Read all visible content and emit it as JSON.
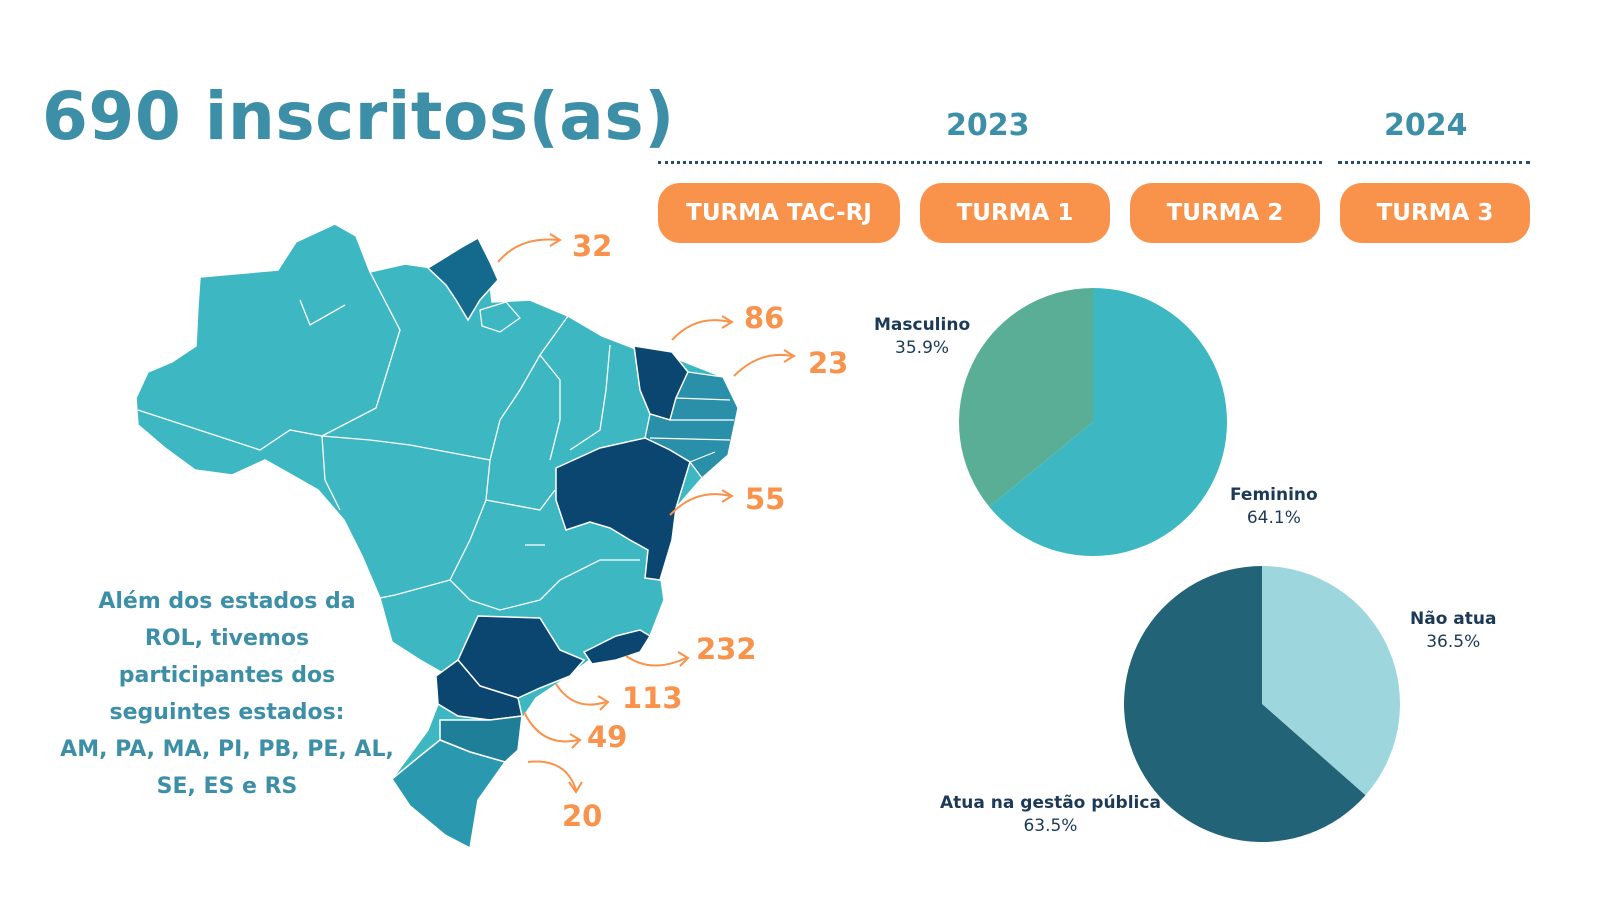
{
  "title": "690 inscritos(as)",
  "years": [
    "2023",
    "2024"
  ],
  "turmas": [
    "TURMA TAC-RJ",
    "TURMA 1",
    "TURMA 2",
    "TURMA 3"
  ],
  "note_lines": [
    "Além dos estados da",
    "ROL, tivemos",
    "participantes dos",
    "seguintes estados:",
    "AM, PA, MA, PI, PB, PE, AL,",
    "SE, ES e RS"
  ],
  "map_counts": [
    "32",
    "86",
    "23",
    "55",
    "232",
    "113",
    "49",
    "20"
  ],
  "colors": {
    "accent_orange": "#f9924b",
    "title_teal": "#3d8fa8",
    "map_light": "#3db8c3",
    "map_dark": "#0a4670",
    "map_mid": "#1f7e98",
    "pie_female": "#3db8c3",
    "pie_male": "#5aae95",
    "pie_atua": "#236377",
    "pie_nao_atua": "#9dd6dc"
  },
  "chart_data": [
    {
      "type": "pie",
      "title": "",
      "series": [
        {
          "name": "Masculino",
          "label": "35.9%",
          "value": 35.9
        },
        {
          "name": "Feminino",
          "label": "64.1%",
          "value": 64.1
        }
      ]
    },
    {
      "type": "pie",
      "title": "",
      "series": [
        {
          "name": "Não atua",
          "label": "36.5%",
          "value": 36.5
        },
        {
          "name": "Atua na gestão pública",
          "label": "63.5%",
          "value": 63.5
        }
      ]
    }
  ]
}
